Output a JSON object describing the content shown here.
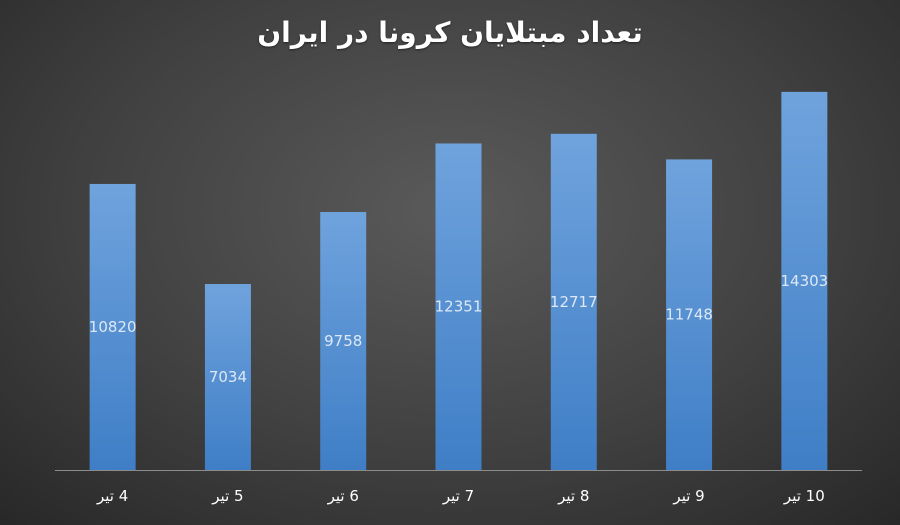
{
  "chart_data": {
    "type": "bar",
    "title": "تعداد مبتلایان کرونا در ایران",
    "categories": [
      "4 تیر",
      "5 تیر",
      "6 تیر",
      "7 تیر",
      "8 تیر",
      "9 تیر",
      "10 تیر"
    ],
    "values": [
      10820,
      7034,
      9758,
      12351,
      12717,
      11748,
      14303
    ],
    "ylim": [
      0,
      16000
    ],
    "grid": false,
    "legend": "none",
    "colors": {
      "bar_top": "#6fa3dd",
      "bar_bottom": "#3f7ec6",
      "axis": "#8c8c8c"
    }
  }
}
